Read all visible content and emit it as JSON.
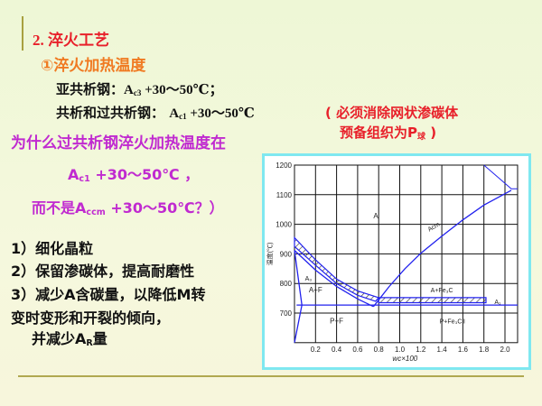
{
  "heading": "2. 淬火工艺",
  "subheading": "①淬火加热温度",
  "hypo": {
    "label": "亚共析钢：",
    "a": "A",
    "sub": "c3",
    "rest": " +30～50℃；"
  },
  "hyper": {
    "label": "共析和过共析钢： ",
    "a": "A",
    "sub": "c1",
    "rest": " +30～50℃",
    "note1": "( 必须消除网状渗碳体",
    "note2a": "预备组织为P",
    "note2sub": "球",
    "note2b": " )"
  },
  "question": {
    "line1": "为什么过共析钢淬火加热温度在",
    "l2a": "A",
    "l2sub": "c1",
    "l2rest": " +30～50℃ ，",
    "l3a": "而不是A",
    "l3sub": "ccm",
    "l3rest": " +30～50℃？）"
  },
  "answers": [
    "1）细化晶粒",
    "2）保留渗碳体，提高耐磨性",
    "3）减少A含碳量，以降低M转",
    "变时变形和开裂的倾向，"
  ],
  "answer_last": {
    "a": "并减少A",
    "sub": "R",
    "rest": "量"
  },
  "diagram": {
    "ylabel": "温度(℃)",
    "xlabel": "wc×100",
    "yticks": [
      "700",
      "800",
      "900",
      "1000",
      "1100",
      "1200"
    ],
    "xticks": [
      "0.2",
      "0.4",
      "0.6",
      "0.8",
      "1.0",
      "1.2",
      "1.4",
      "1.6",
      "1.8",
      "2.0"
    ],
    "regions": {
      "A": "A",
      "AF": "A+F",
      "PF": "P+F",
      "AFe3C": "A+Fe₃C",
      "PFe3C": "P+Fe₃CⅡ",
      "A1": "A₁",
      "A3": "A₃",
      "Acm": "Acm"
    },
    "line_color": "#2222ee",
    "border_color": "#7fe8f0"
  }
}
